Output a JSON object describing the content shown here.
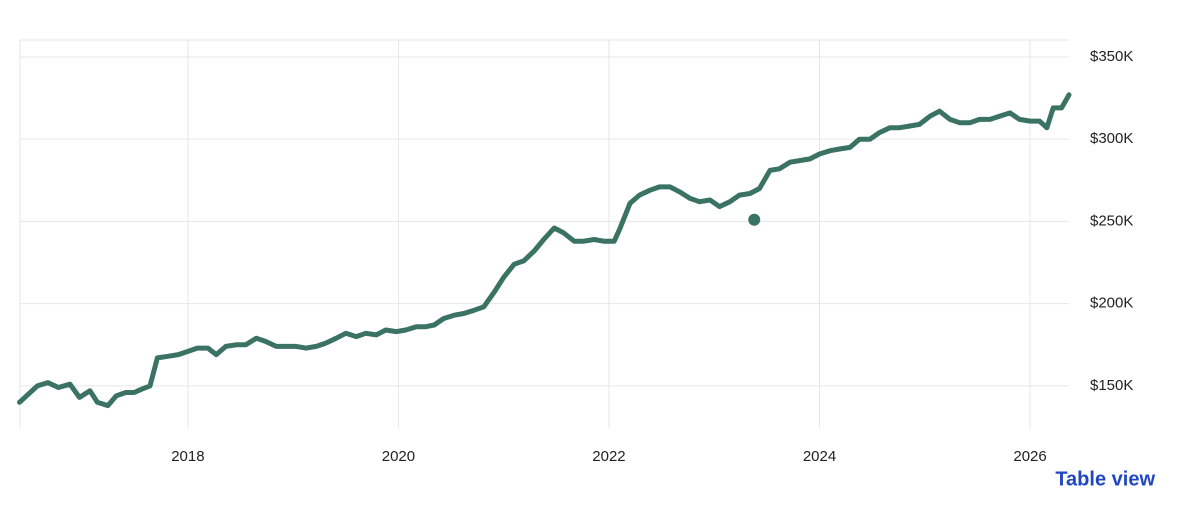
{
  "chart_data": {
    "type": "line",
    "x": [
      2016.4,
      2016.57,
      2016.67,
      2016.77,
      2016.88,
      2016.97,
      2017.07,
      2017.14,
      2017.24,
      2017.32,
      2017.41,
      2017.49,
      2017.56,
      2017.64,
      2017.71,
      2017.81,
      2017.91,
      2018.0,
      2018.09,
      2018.19,
      2018.27,
      2018.36,
      2018.46,
      2018.55,
      2018.65,
      2018.74,
      2018.84,
      2018.93,
      2019.03,
      2019.12,
      2019.22,
      2019.31,
      2019.41,
      2019.5,
      2019.6,
      2019.69,
      2019.79,
      2019.88,
      2019.98,
      2020.07,
      2020.17,
      2020.26,
      2020.34,
      2020.43,
      2020.53,
      2020.62,
      2020.72,
      2020.81,
      2020.91,
      2021.0,
      2021.1,
      2021.19,
      2021.29,
      2021.38,
      2021.48,
      2021.57,
      2021.67,
      2021.76,
      2021.86,
      2021.95,
      2022.05,
      2022.1,
      2022.2,
      2022.29,
      2022.39,
      2022.48,
      2022.58,
      2022.67,
      2022.77,
      2022.86,
      2022.96,
      2023.05,
      2023.15,
      2023.24,
      2023.34,
      2023.43,
      2023.53,
      2023.62,
      2023.72,
      2023.81,
      2023.91,
      2024.0,
      2024.1,
      2024.19,
      2024.29,
      2024.38,
      2024.48,
      2024.57,
      2024.67,
      2024.76,
      2024.86,
      2024.95,
      2025.05,
      2025.14,
      2025.24,
      2025.33,
      2025.43,
      2025.52,
      2025.62,
      2025.71,
      2025.81,
      2025.9,
      2026.0,
      2026.09,
      2026.16,
      2026.22,
      2026.3,
      2026.37
    ],
    "series": [
      {
        "color": "#3a7263",
        "values": [
          140000,
          150000,
          152000,
          149000,
          151000,
          143000,
          147000,
          140000,
          138000,
          144000,
          146000,
          146000,
          148000,
          150000,
          167000,
          168000,
          169000,
          171000,
          173000,
          173000,
          169000,
          174000,
          175000,
          175000,
          179000,
          177000,
          174000,
          174000,
          174000,
          173000,
          174000,
          176000,
          179000,
          182000,
          180000,
          182000,
          181000,
          184000,
          183000,
          184000,
          186000,
          186000,
          187000,
          191000,
          193000,
          194000,
          196000,
          198000,
          207000,
          216000,
          224000,
          226000,
          232000,
          239000,
          246000,
          243000,
          238000,
          238000,
          239000,
          238000,
          238000,
          245000,
          261000,
          266000,
          269000,
          271000,
          271000,
          268000,
          264000,
          262000,
          263000,
          259000,
          262000,
          266000,
          267000,
          270000,
          281000,
          282000,
          286000,
          287000,
          288000,
          291000,
          293000,
          294000,
          295000,
          300000,
          300000,
          304000,
          307000,
          307000,
          308000,
          309000,
          314000,
          317000,
          312000,
          310000,
          310000,
          312000,
          312000,
          314000,
          316000,
          312000,
          311000,
          311000,
          307000,
          319000,
          319000,
          327000
        ]
      }
    ],
    "marker": {
      "x": 2023.38,
      "value": 251000,
      "color": "#3a7263"
    },
    "xlim": [
      2016.405,
      2026.37
    ],
    "xticks": [
      2018,
      2020,
      2022,
      2024,
      2026
    ],
    "ylim": [
      124400,
      360300
    ],
    "yticks": [
      {
        "value": 150000,
        "label": "$150K"
      },
      {
        "value": 200000,
        "label": "$200K"
      },
      {
        "value": 250000,
        "label": "$250K"
      },
      {
        "value": 300000,
        "label": "$300K"
      },
      {
        "value": 350000,
        "label": "$350K"
      }
    ],
    "grid": true,
    "link": "Table view"
  }
}
